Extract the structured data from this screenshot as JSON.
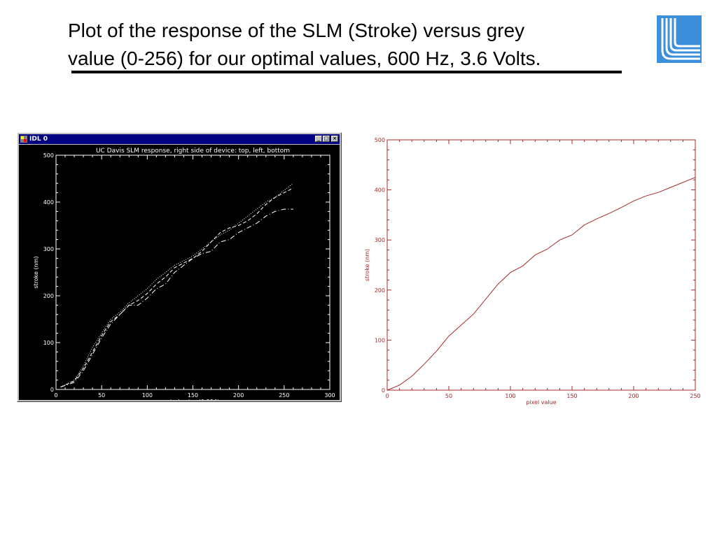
{
  "slide": {
    "title_line1": "Plot of the response of the SLM (Stroke) versus grey",
    "title_line2": "value (0-256) for our optimal values, 600 Hz, 3.6 Volts."
  },
  "window": {
    "title": "IDL 0",
    "minimize_label": "_",
    "maximize_label": "□",
    "close_label": "×"
  },
  "colors": {
    "logo_blue": "#3d8fdc",
    "window_titlebar": "#000080",
    "right_chart_line": "#a52a2a"
  },
  "chart_data": [
    {
      "type": "line",
      "title": "UC Davis SLM response, right side of device: top, left, bottom",
      "xlabel": "pixel value (0-254)",
      "ylabel": "stroke (nm)",
      "xlim": [
        0,
        300
      ],
      "ylim": [
        0,
        500
      ],
      "xticks": [
        0,
        50,
        100,
        150,
        200,
        250,
        300
      ],
      "yticks": [
        0,
        100,
        200,
        300,
        400,
        500
      ],
      "background": "#000000",
      "series": [
        {
          "style": "dotted",
          "x": [
            5,
            20,
            30,
            40,
            50,
            60,
            70,
            80,
            90,
            100,
            110,
            120,
            130,
            140,
            150,
            160,
            170,
            180,
            190,
            200,
            210,
            220,
            230,
            240,
            250,
            260
          ],
          "y": [
            5,
            20,
            50,
            90,
            120,
            150,
            165,
            185,
            200,
            215,
            235,
            250,
            265,
            275,
            285,
            300,
            315,
            330,
            340,
            355,
            370,
            385,
            400,
            410,
            425,
            440
          ]
        },
        {
          "style": "dashed",
          "x": [
            5,
            20,
            30,
            40,
            50,
            60,
            70,
            80,
            90,
            100,
            110,
            120,
            130,
            140,
            150,
            160,
            170,
            180,
            190,
            200,
            210,
            220,
            230,
            240,
            250,
            260
          ],
          "y": [
            5,
            18,
            45,
            80,
            115,
            145,
            160,
            180,
            190,
            205,
            225,
            240,
            260,
            270,
            280,
            295,
            315,
            335,
            345,
            350,
            360,
            375,
            395,
            410,
            420,
            430
          ]
        },
        {
          "style": "dash-dot",
          "x": [
            5,
            20,
            30,
            40,
            50,
            60,
            70,
            80,
            90,
            100,
            110,
            120,
            130,
            140,
            150,
            160,
            170,
            180,
            190,
            200,
            210,
            220,
            230,
            240,
            250,
            260
          ],
          "y": [
            5,
            15,
            40,
            75,
            110,
            140,
            160,
            180,
            180,
            195,
            215,
            225,
            250,
            265,
            280,
            290,
            295,
            315,
            320,
            335,
            345,
            355,
            370,
            380,
            385,
            385
          ]
        }
      ]
    },
    {
      "type": "line",
      "title": "",
      "xlabel": "pixel value",
      "ylabel": "stroke (nm)",
      "xlim": [
        0,
        250
      ],
      "ylim": [
        0,
        500
      ],
      "xticks": [
        0,
        50,
        100,
        150,
        200,
        250
      ],
      "yticks": [
        0,
        100,
        200,
        300,
        400,
        500
      ],
      "background": "#ffffff",
      "series": [
        {
          "style": "solid",
          "x": [
            0,
            10,
            20,
            30,
            40,
            50,
            60,
            70,
            80,
            90,
            100,
            110,
            120,
            130,
            140,
            150,
            160,
            170,
            180,
            190,
            200,
            210,
            220,
            230,
            240,
            250
          ],
          "y": [
            0,
            10,
            28,
            52,
            78,
            108,
            130,
            152,
            182,
            212,
            235,
            248,
            270,
            282,
            300,
            310,
            330,
            342,
            353,
            365,
            378,
            388,
            395,
            405,
            415,
            425
          ]
        }
      ]
    }
  ]
}
